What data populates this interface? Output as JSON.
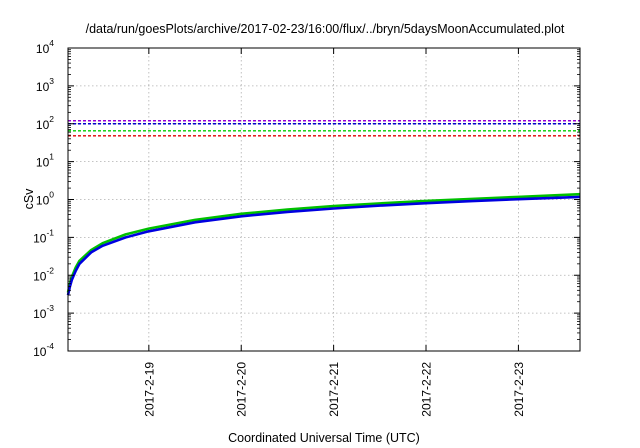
{
  "chart_data": {
    "type": "line",
    "title": "/data/run/goesPlots/archive/2017-02-23/16:00/flux/../bryn/5daysMoonAccumulated.plot",
    "xlabel": "Coordinated Universal Time (UTC)",
    "ylabel": "cSv",
    "y_scale": "log",
    "ylim": [
      0.0001,
      10000
    ],
    "xlim": [
      "2017-02-18 03:00",
      "2017-02-23 16:00"
    ],
    "grid": true,
    "x_ticks": [
      "2017-2-19",
      "2017-2-20",
      "2017-2-21",
      "2017-2-22",
      "2017-2-23"
    ],
    "y_ticks": [
      {
        "base": "10",
        "exp": "-4"
      },
      {
        "base": "10",
        "exp": "-3"
      },
      {
        "base": "10",
        "exp": "-2"
      },
      {
        "base": "10",
        "exp": "-1"
      },
      {
        "base": "10",
        "exp": "0"
      },
      {
        "base": "10",
        "exp": "1"
      },
      {
        "base": "10",
        "exp": "2"
      },
      {
        "base": "10",
        "exp": "3"
      },
      {
        "base": "10",
        "exp": "4"
      }
    ],
    "thresholds": [
      {
        "value": 120,
        "color": "#9400d3"
      },
      {
        "value": 100,
        "color": "#0000cc"
      },
      {
        "value": 65,
        "color": "#00cc00"
      },
      {
        "value": 48,
        "color": "#e00000"
      }
    ],
    "series": [
      {
        "color": "#00c000",
        "x": [
          "2017-02-18 03:00",
          "2017-02-18 03:30",
          "2017-02-18 04:00",
          "2017-02-18 05:00",
          "2017-02-18 06:00",
          "2017-02-18 09:00",
          "2017-02-18 12:00",
          "2017-02-18 18:00",
          "2017-02-19 00:00",
          "2017-02-19 12:00",
          "2017-02-20 00:00",
          "2017-02-20 12:00",
          "2017-02-21 00:00",
          "2017-02-21 12:00",
          "2017-02-22 00:00",
          "2017-02-22 12:00",
          "2017-02-23 00:00",
          "2017-02-23 16:00"
        ],
        "values": [
          0.0035,
          0.006,
          0.009,
          0.016,
          0.024,
          0.046,
          0.07,
          0.12,
          0.17,
          0.29,
          0.42,
          0.54,
          0.67,
          0.79,
          0.92,
          1.04,
          1.17,
          1.38
        ]
      },
      {
        "color": "#0000e0",
        "x": [
          "2017-02-18 03:00",
          "2017-02-18 03:30",
          "2017-02-18 04:00",
          "2017-02-18 05:00",
          "2017-02-18 06:00",
          "2017-02-18 09:00",
          "2017-02-18 12:00",
          "2017-02-18 18:00",
          "2017-02-19 00:00",
          "2017-02-19 12:00",
          "2017-02-20 00:00",
          "2017-02-20 12:00",
          "2017-02-21 00:00",
          "2017-02-21 12:00",
          "2017-02-22 00:00",
          "2017-02-22 12:00",
          "2017-02-23 00:00",
          "2017-02-23 16:00"
        ],
        "values": [
          0.003,
          0.005,
          0.0075,
          0.013,
          0.02,
          0.04,
          0.06,
          0.1,
          0.145,
          0.25,
          0.36,
          0.47,
          0.58,
          0.69,
          0.8,
          0.91,
          1.02,
          1.17
        ]
      }
    ]
  }
}
